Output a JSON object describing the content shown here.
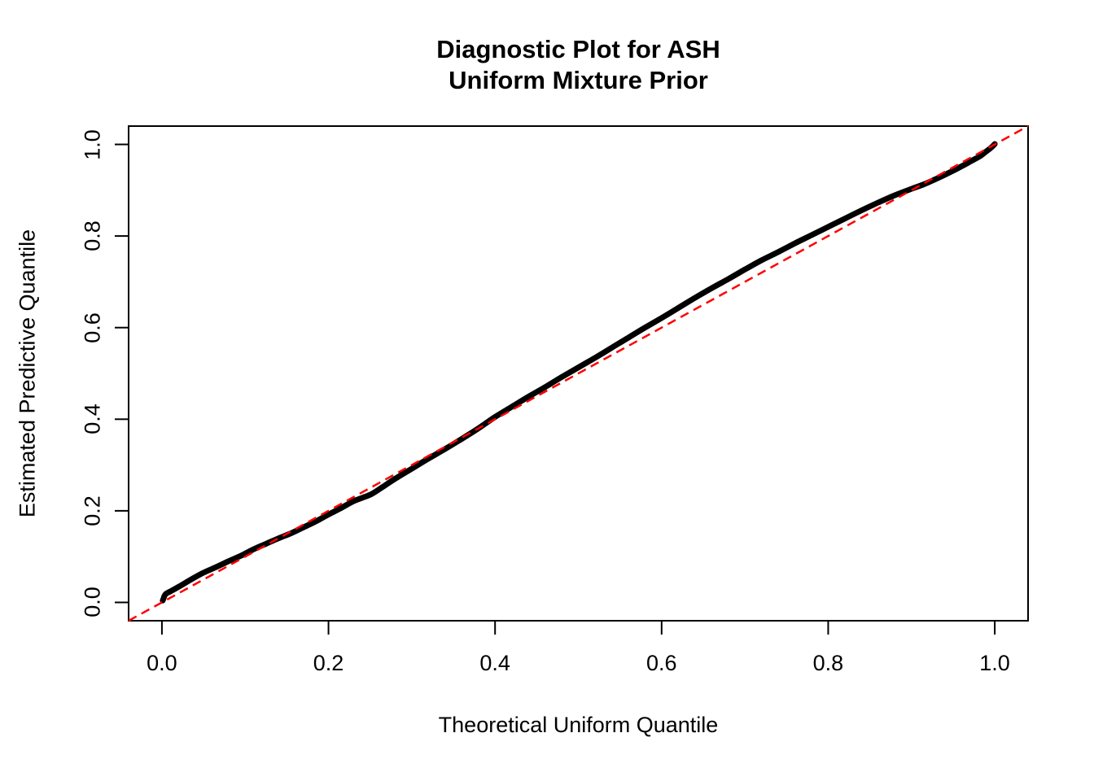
{
  "figure": {
    "title_line1": "Diagnostic Plot for ASH",
    "title_line2": "Uniform Mixture Prior",
    "xlabel": "Theoretical Uniform Quantile",
    "ylabel": "Estimated Predictive Quantile"
  },
  "chart_data": {
    "type": "line",
    "title": "Diagnostic Plot for ASH\nUniform Mixture Prior",
    "xlabel": "Theoretical Uniform Quantile",
    "ylabel": "Estimated Predictive Quantile",
    "xlim": [
      -0.04,
      1.04
    ],
    "ylim": [
      -0.04,
      1.04
    ],
    "x_ticks": [
      0.0,
      0.2,
      0.4,
      0.6,
      0.8,
      1.0
    ],
    "y_ticks": [
      0.0,
      0.2,
      0.4,
      0.6,
      0.8,
      1.0
    ],
    "x_tick_labels": [
      "0.0",
      "0.2",
      "0.4",
      "0.6",
      "0.8",
      "1.0"
    ],
    "y_tick_labels": [
      "0.0",
      "0.2",
      "0.4",
      "0.6",
      "0.8",
      "1.0"
    ],
    "grid": false,
    "legend": "none",
    "background_color": "#ffffff",
    "box_color": "#000000",
    "series": [
      {
        "name": "estimated-predictive-quantile-curve",
        "color": "#000000",
        "style": "solid",
        "stroke_width": 7,
        "points": [
          [
            0.001,
            0.004
          ],
          [
            0.002,
            0.009
          ],
          [
            0.003,
            0.014
          ],
          [
            0.005,
            0.019
          ],
          [
            0.01,
            0.024
          ],
          [
            0.02,
            0.034
          ],
          [
            0.035,
            0.05
          ],
          [
            0.05,
            0.065
          ],
          [
            0.065,
            0.077
          ],
          [
            0.08,
            0.09
          ],
          [
            0.095,
            0.102
          ],
          [
            0.11,
            0.116
          ],
          [
            0.125,
            0.128
          ],
          [
            0.14,
            0.14
          ],
          [
            0.155,
            0.151
          ],
          [
            0.17,
            0.164
          ],
          [
            0.185,
            0.177
          ],
          [
            0.2,
            0.192
          ],
          [
            0.215,
            0.206
          ],
          [
            0.23,
            0.221
          ],
          [
            0.24,
            0.228
          ],
          [
            0.252,
            0.237
          ],
          [
            0.265,
            0.252
          ],
          [
            0.28,
            0.27
          ],
          [
            0.3,
            0.292
          ],
          [
            0.32,
            0.314
          ],
          [
            0.34,
            0.335
          ],
          [
            0.36,
            0.357
          ],
          [
            0.38,
            0.38
          ],
          [
            0.4,
            0.405
          ],
          [
            0.42,
            0.427
          ],
          [
            0.44,
            0.449
          ],
          [
            0.46,
            0.47
          ],
          [
            0.48,
            0.492
          ],
          [
            0.5,
            0.513
          ],
          [
            0.52,
            0.534
          ],
          [
            0.54,
            0.556
          ],
          [
            0.56,
            0.578
          ],
          [
            0.58,
            0.6
          ],
          [
            0.6,
            0.621
          ],
          [
            0.62,
            0.643
          ],
          [
            0.64,
            0.665
          ],
          [
            0.66,
            0.686
          ],
          [
            0.68,
            0.706
          ],
          [
            0.7,
            0.727
          ],
          [
            0.72,
            0.747
          ],
          [
            0.74,
            0.765
          ],
          [
            0.76,
            0.784
          ],
          [
            0.78,
            0.802
          ],
          [
            0.8,
            0.82
          ],
          [
            0.82,
            0.838
          ],
          [
            0.84,
            0.856
          ],
          [
            0.86,
            0.873
          ],
          [
            0.88,
            0.889
          ],
          [
            0.9,
            0.903
          ],
          [
            0.915,
            0.913
          ],
          [
            0.93,
            0.925
          ],
          [
            0.945,
            0.938
          ],
          [
            0.96,
            0.952
          ],
          [
            0.972,
            0.964
          ],
          [
            0.982,
            0.974
          ],
          [
            0.99,
            0.985
          ],
          [
            0.995,
            0.992
          ],
          [
            0.998,
            0.997
          ],
          [
            1.0,
            1.001
          ]
        ]
      },
      {
        "name": "reference-diagonal",
        "color": "#FF0000",
        "style": "dashed",
        "stroke_width": 2.5,
        "points": [
          [
            -0.04,
            -0.04
          ],
          [
            1.04,
            1.04
          ]
        ]
      }
    ]
  }
}
